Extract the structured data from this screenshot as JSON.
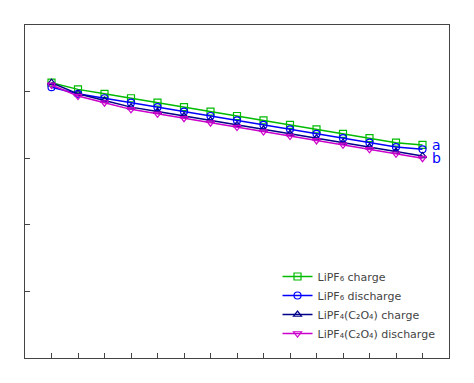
{
  "chart_data": {
    "type": "line",
    "x": [
      1,
      2,
      3,
      4,
      5,
      6,
      7,
      8,
      9,
      10,
      11,
      12,
      13,
      14,
      15
    ],
    "series": [
      {
        "name": "LiPF₆ charge",
        "color": "#00bb00",
        "marker": "square",
        "values": [
          162,
          160.5,
          159.5,
          158.5,
          157.5,
          156.5,
          155.5,
          154.5,
          153.5,
          152.5,
          151.5,
          150.5,
          149.5,
          148.5,
          148.0
        ]
      },
      {
        "name": "LiPF₆ discharge",
        "color": "#0000ff",
        "marker": "circle",
        "values": [
          161,
          159.5,
          158.5,
          157.5,
          156.5,
          155.5,
          154.5,
          153.5,
          152.5,
          151.5,
          150.5,
          149.5,
          148.5,
          147.5,
          147.0
        ]
      },
      {
        "name": "LiPF₄(C₂O₄) charge",
        "color": "#000088",
        "marker": "triangle-up",
        "values": [
          162,
          159.5,
          158.0,
          156.5,
          155.5,
          154.5,
          153.5,
          152.5,
          151.5,
          150.5,
          149.5,
          148.5,
          147.5,
          146.5,
          145.5
        ]
      },
      {
        "name": "LiPF₄(C₂O₄) discharge",
        "color": "#cc00cc",
        "marker": "triangle-down",
        "values": [
          161.5,
          159.0,
          157.5,
          156.0,
          155.0,
          154.0,
          153.0,
          152.0,
          151.0,
          150.0,
          149.0,
          148.0,
          147.0,
          146.0,
          145.0
        ]
      }
    ],
    "annotations": [
      {
        "text": "a",
        "x": 15.3,
        "y": 148.0,
        "color": "#0000ff"
      },
      {
        "text": "b",
        "x": 15.3,
        "y": 145.0,
        "color": "#0000ff"
      }
    ],
    "xlim": [
      0,
      16
    ],
    "ylim": [
      100,
      175
    ],
    "xticks": [
      0,
      1,
      2,
      3,
      4,
      5,
      6,
      7,
      8,
      9,
      10,
      11,
      12,
      13,
      14,
      15
    ],
    "yticks": [
      100,
      115,
      130,
      145,
      160,
      175
    ],
    "tick_labels": false,
    "grid": false,
    "legend": "lower right"
  }
}
